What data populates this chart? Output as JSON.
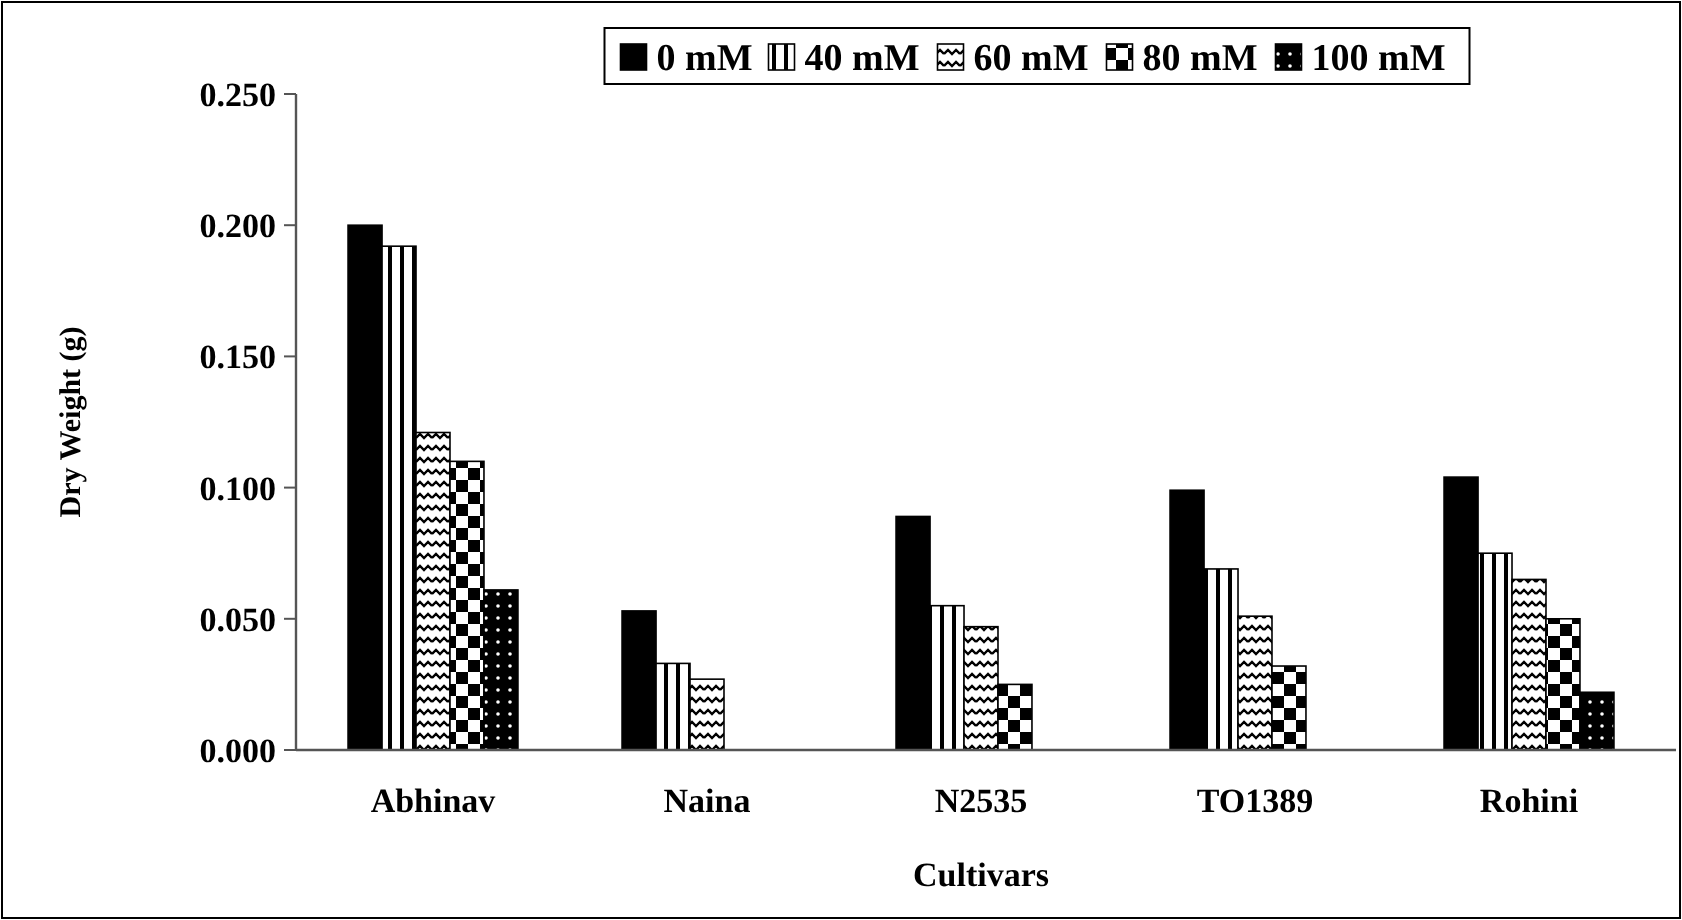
{
  "chart_data": {
    "type": "bar",
    "xlabel": "Cultivars",
    "ylabel": "Dry Weight (g)",
    "categories": [
      "Abhinav",
      "Naina",
      "N2535",
      "TO1389",
      "Rohini"
    ],
    "series": [
      {
        "name": "0 mM",
        "color": "#000000",
        "values": [
          0.2,
          0.053,
          0.089,
          0.099,
          0.104
        ]
      },
      {
        "name": "40 mM",
        "color": "#000000",
        "values": [
          0.192,
          0.033,
          0.055,
          0.069,
          0.075
        ]
      },
      {
        "name": "60 mM",
        "color": "#000000",
        "values": [
          0.121,
          0.027,
          0.047,
          0.051,
          0.065
        ]
      },
      {
        "name": "80 mM",
        "color": "#000000",
        "values": [
          0.11,
          null,
          0.025,
          0.032,
          0.05
        ]
      },
      {
        "name": "100 mM",
        "color": "#000000",
        "values": [
          0.061,
          null,
          null,
          null,
          0.022
        ]
      }
    ],
    "ylim": [
      0,
      0.25
    ],
    "yticks": [
      {
        "value": 0,
        "label": "0.000"
      },
      {
        "value": 0.05,
        "label": "0.050"
      },
      {
        "value": 0.1,
        "label": "0.100"
      },
      {
        "value": 0.15,
        "label": "0.150"
      },
      {
        "value": 0.2,
        "label": "0.200"
      },
      {
        "value": 0.25,
        "label": "0.250"
      }
    ],
    "grid": false,
    "legend": "top"
  }
}
